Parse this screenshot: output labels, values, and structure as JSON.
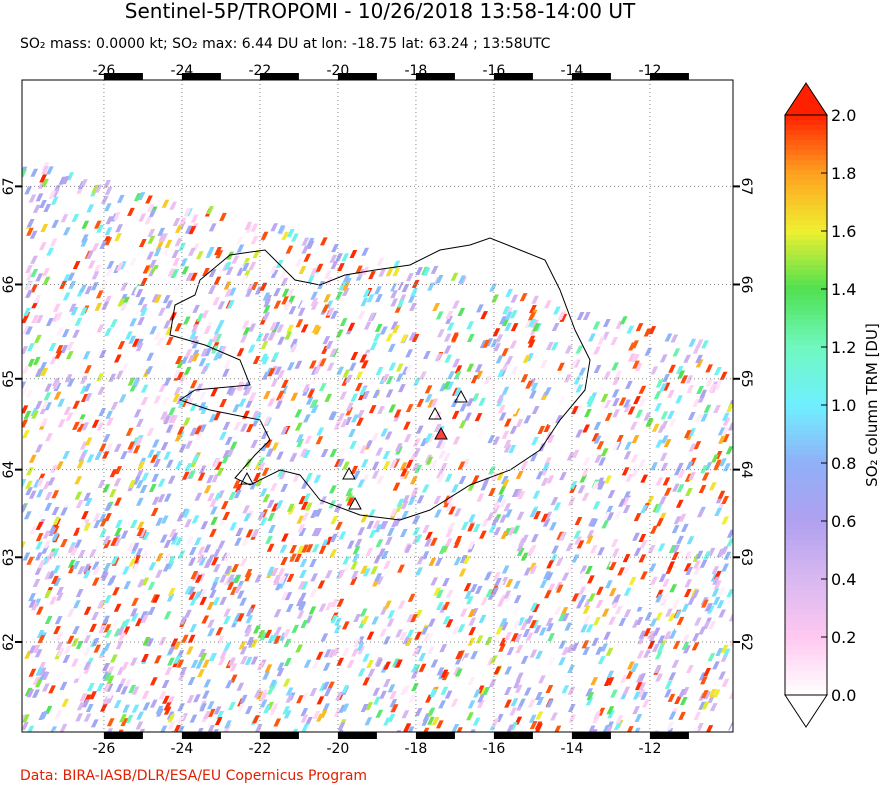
{
  "header": {
    "title": "Sentinel-5P/TROPOMI - 10/26/2018 13:58-14:00 UT",
    "subtitle": "SO₂ mass: 0.0000 kt; SO₂ max: 6.44 DU at lon: -18.75 lat: 63.24 ; 13:58UTC"
  },
  "map": {
    "lon_range": [
      -28.1,
      -9.87
    ],
    "lat_range": [
      60.9,
      68.04
    ],
    "lon_ticks": [
      -26,
      -24,
      -22,
      -20,
      -18,
      -16,
      -14,
      -12
    ],
    "lat_ticks": [
      67,
      66,
      65,
      64,
      63,
      62
    ]
  },
  "colorbar": {
    "label": "SO₂ column TRM [DU]",
    "range": [
      0,
      2
    ],
    "ticks": [
      {
        "value": 0,
        "label": "0.0"
      },
      {
        "value": 0.2,
        "label": "0.2"
      },
      {
        "value": 0.4,
        "label": "0.4"
      },
      {
        "value": 0.6,
        "label": "0.6"
      },
      {
        "value": 0.8,
        "label": "0.8"
      },
      {
        "value": 1,
        "label": "1.0"
      },
      {
        "value": 1.2,
        "label": "1.2"
      },
      {
        "value": 1.4,
        "label": "1.4"
      },
      {
        "value": 1.6,
        "label": "1.6"
      },
      {
        "value": 1.8,
        "label": "1.8"
      },
      {
        "value": 2,
        "label": "2.0"
      }
    ],
    "colors": [
      "#ffffff",
      "#ffc8f0",
      "#d8b8f0",
      "#b0a0f0",
      "#90b0f8",
      "#70f0ff",
      "#70f8c0",
      "#50e050",
      "#f0f030",
      "#ffa020",
      "#ff2000"
    ]
  },
  "footer": {
    "credit": "Data: BIRA-IASB/DLR/ESA/EU Copernicus Program"
  }
}
